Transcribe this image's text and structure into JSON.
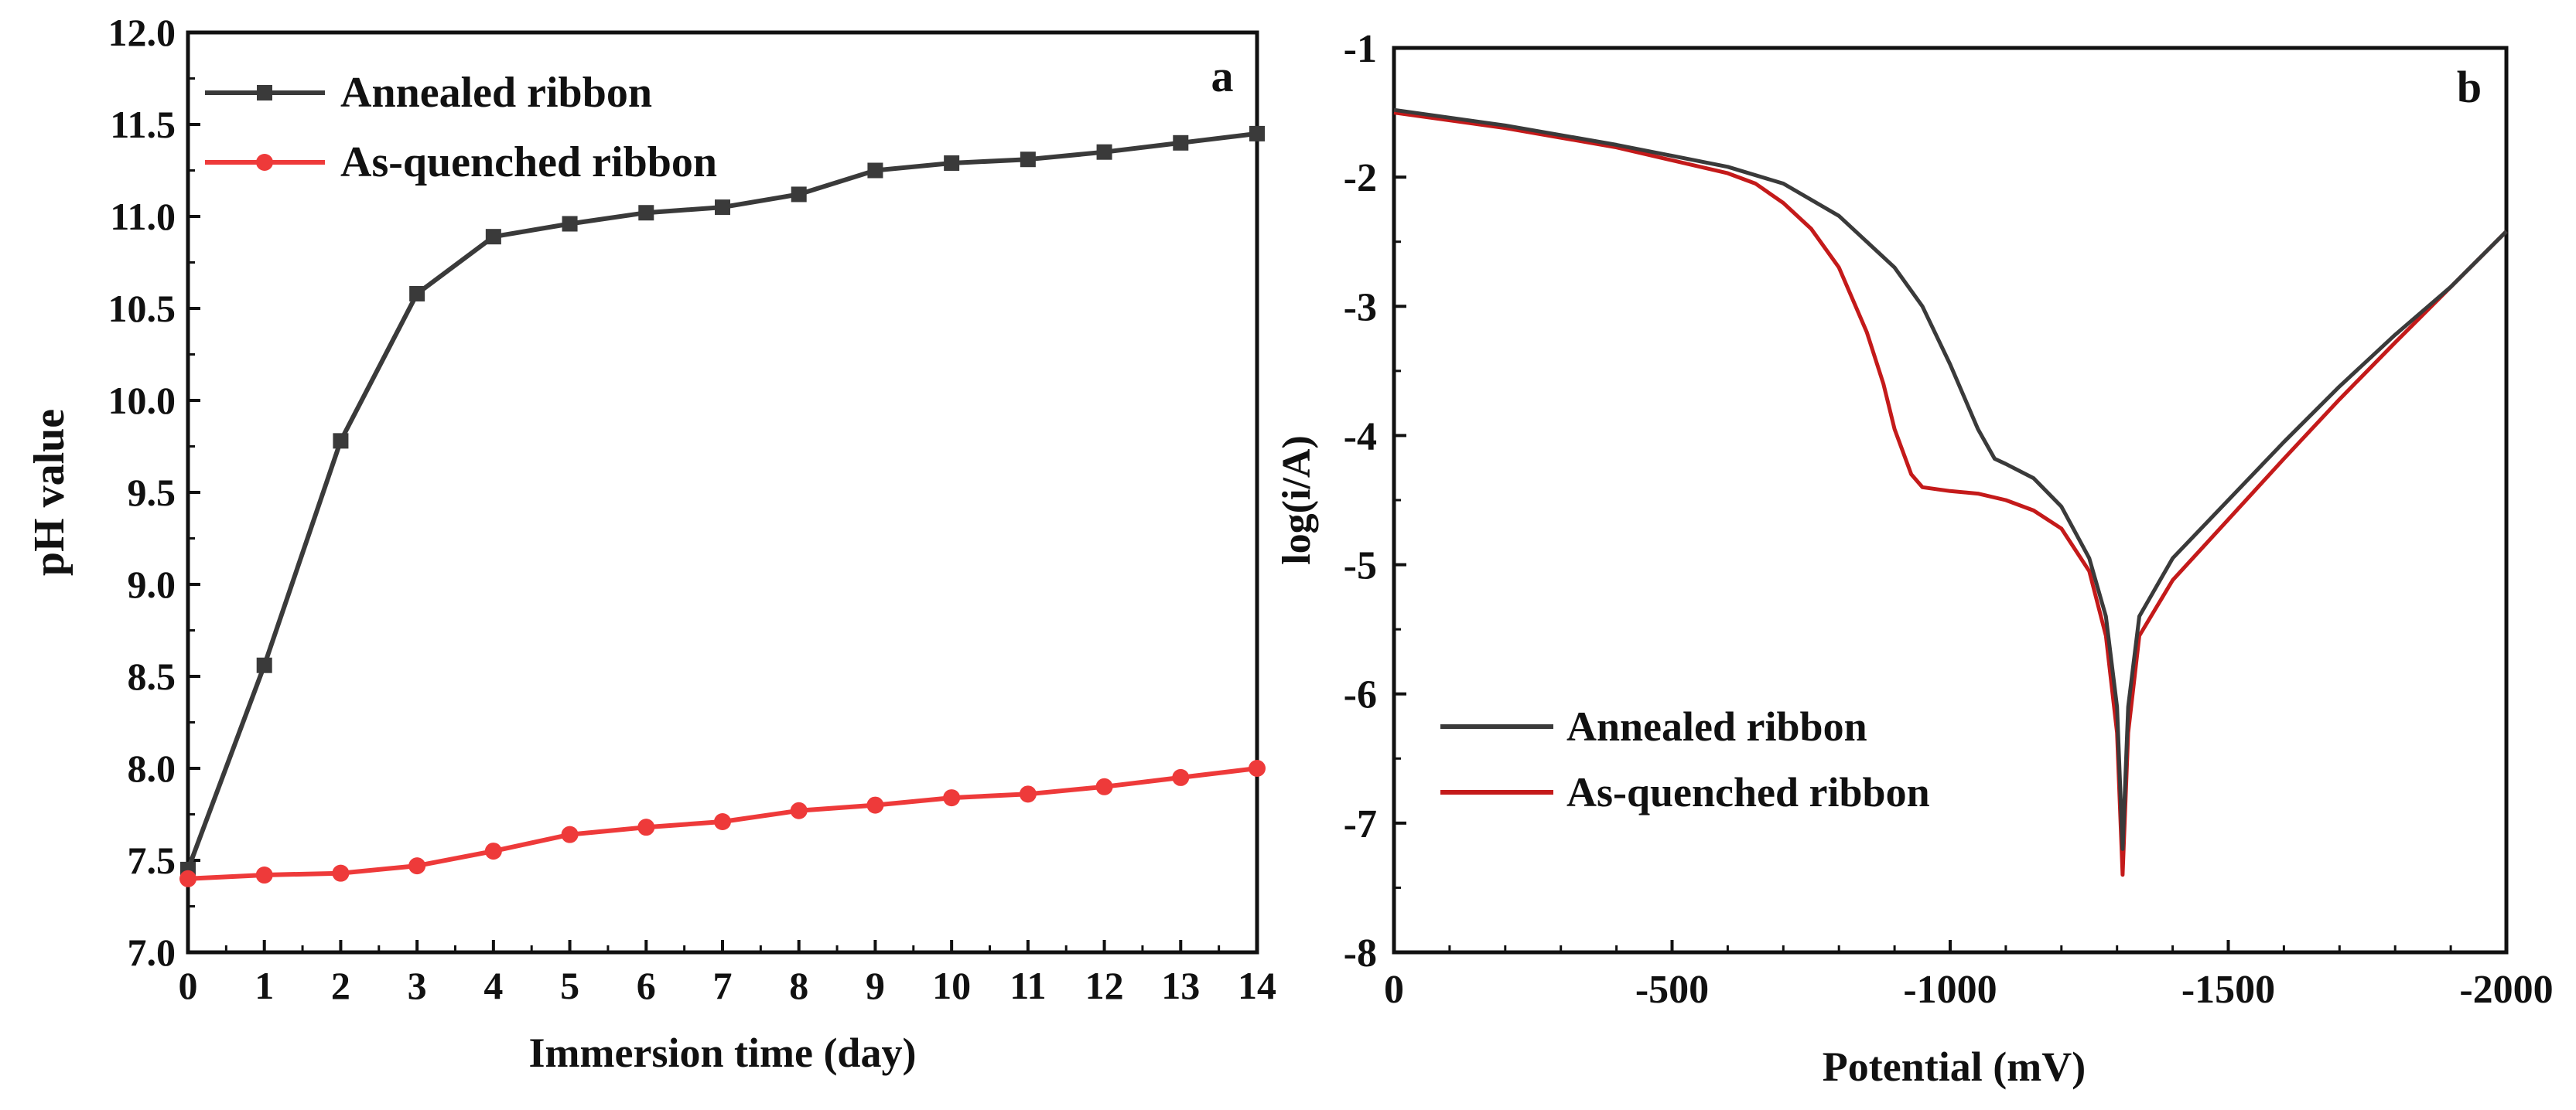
{
  "colors": {
    "annealed_a": "#3a3a3a",
    "quenched_a": "#ee3a3a",
    "annealed_b": "#3a3a3a",
    "quenched_b": "#c41a1a",
    "axis": "#111111"
  },
  "chart_data": [
    {
      "type": "line",
      "panel": "a",
      "xlabel": "Immersion time (day)",
      "ylabel": "pH value",
      "xlim": [
        0,
        14
      ],
      "ylim": [
        7.0,
        12.0
      ],
      "xticks": [
        "0",
        "1",
        "2",
        "3",
        "4",
        "5",
        "6",
        "7",
        "8",
        "9",
        "10",
        "11",
        "12",
        "13",
        "14"
      ],
      "yticks": [
        "7.0",
        "7.5",
        "8.0",
        "8.5",
        "9.0",
        "9.5",
        "10.0",
        "10.5",
        "11.0",
        "11.5",
        "12.0"
      ],
      "legend_position": "top-left",
      "x": [
        0,
        1,
        2,
        3,
        4,
        5,
        6,
        7,
        8,
        9,
        10,
        11,
        12,
        13,
        14
      ],
      "series": [
        {
          "name": "Annealed ribbon",
          "marker": "square",
          "values": [
            7.45,
            8.56,
            9.78,
            10.58,
            10.89,
            10.96,
            11.02,
            11.05,
            11.12,
            11.25,
            11.29,
            11.31,
            11.35,
            11.4,
            11.45
          ]
        },
        {
          "name": "As-quenched ribbon",
          "marker": "circle",
          "values": [
            7.4,
            7.42,
            7.43,
            7.47,
            7.55,
            7.64,
            7.68,
            7.71,
            7.77,
            7.8,
            7.84,
            7.86,
            7.9,
            7.95,
            8.0
          ]
        }
      ]
    },
    {
      "type": "line",
      "panel": "b",
      "xlabel": "Potential (mV)",
      "ylabel": "log(i/A)",
      "xlim": [
        0,
        -2000
      ],
      "ylim": [
        -8,
        -1
      ],
      "xticks": [
        "0",
        "-500",
        "-1000",
        "-1500",
        "-2000"
      ],
      "yticks": [
        "-1",
        "-2",
        "-3",
        "-4",
        "-5",
        "-6",
        "-7",
        "-8"
      ],
      "legend_position": "bottom-left",
      "series": [
        {
          "name": "Annealed ribbon",
          "x": [
            0,
            -200,
            -400,
            -600,
            -700,
            -800,
            -900,
            -950,
            -1000,
            -1050,
            -1080,
            -1100,
            -1150,
            -1200,
            -1250,
            -1280,
            -1300,
            -1310,
            -1320,
            -1340,
            -1400,
            -1500,
            -1600,
            -1700,
            -1800,
            -1900,
            -2000
          ],
          "y": [
            -1.48,
            -1.6,
            -1.75,
            -1.92,
            -2.05,
            -2.3,
            -2.7,
            -3.0,
            -3.45,
            -3.95,
            -4.18,
            -4.22,
            -4.33,
            -4.55,
            -4.95,
            -5.4,
            -6.1,
            -7.2,
            -6.1,
            -5.4,
            -4.95,
            -4.5,
            -4.05,
            -3.62,
            -3.22,
            -2.85,
            -2.42
          ]
        },
        {
          "name": "As-quenched ribbon",
          "x": [
            0,
            -200,
            -400,
            -600,
            -650,
            -700,
            -750,
            -800,
            -850,
            -880,
            -900,
            -930,
            -950,
            -1000,
            -1050,
            -1100,
            -1150,
            -1200,
            -1250,
            -1280,
            -1300,
            -1310,
            -1320,
            -1340,
            -1400,
            -1500,
            -1600,
            -1700,
            -1800,
            -1900,
            -2000
          ],
          "y": [
            -1.5,
            -1.62,
            -1.77,
            -1.97,
            -2.05,
            -2.2,
            -2.4,
            -2.7,
            -3.2,
            -3.6,
            -3.95,
            -4.3,
            -4.4,
            -4.43,
            -4.45,
            -4.5,
            -4.58,
            -4.72,
            -5.05,
            -5.55,
            -6.3,
            -7.4,
            -6.3,
            -5.55,
            -5.12,
            -4.65,
            -4.18,
            -3.72,
            -3.28,
            -2.85,
            -2.42
          ]
        }
      ]
    }
  ]
}
